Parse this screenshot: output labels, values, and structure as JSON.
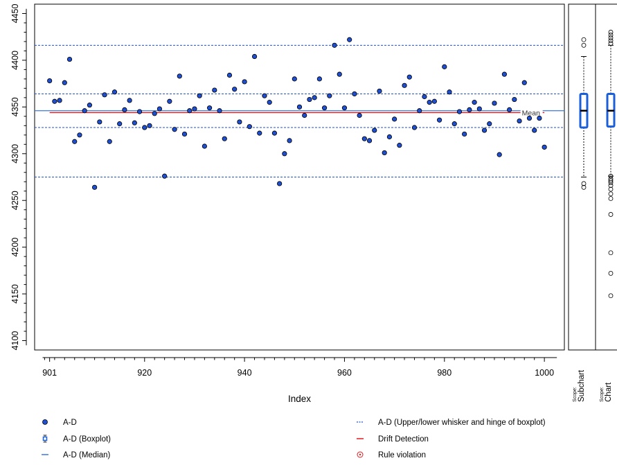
{
  "chart_data": {
    "type": "scatter",
    "x": [
      901,
      902,
      903,
      904,
      905,
      906,
      907,
      908,
      909,
      910,
      911,
      912,
      913,
      914,
      915,
      916,
      917,
      918,
      919,
      920,
      921,
      922,
      923,
      924,
      925,
      926,
      927,
      928,
      929,
      930,
      931,
      932,
      933,
      934,
      935,
      936,
      937,
      938,
      939,
      940,
      941,
      942,
      943,
      944,
      945,
      946,
      947,
      948,
      949,
      950,
      951,
      952,
      953,
      954,
      955,
      956,
      957,
      958,
      959,
      960,
      961,
      962,
      963,
      964,
      965,
      966,
      967,
      968,
      969,
      970,
      971,
      972,
      973,
      974,
      975,
      976,
      977,
      978,
      979,
      980,
      981,
      982,
      983,
      984,
      985,
      986,
      987,
      988,
      989,
      990,
      991,
      992,
      993,
      994,
      995,
      996,
      997,
      998,
      999,
      1000
    ],
    "y": [
      4378,
      4356,
      4357,
      4376,
      4401,
      4313,
      4320,
      4346,
      4352,
      4264,
      4334,
      4363,
      4313,
      4366,
      4332,
      4347,
      4357,
      4333,
      4345,
      4328,
      4330,
      4343,
      4348,
      4276,
      4356,
      4326,
      4383,
      4321,
      4346,
      4348,
      4362,
      4308,
      4349,
      4368,
      4346,
      4316,
      4384,
      4369,
      4334,
      4377,
      4329,
      4404,
      4322,
      4362,
      4355,
      4322,
      4268,
      4300,
      4314,
      4380,
      4350,
      4341,
      4358,
      4360,
      4380,
      4349,
      4362,
      4416,
      4385,
      4349,
      4422,
      4364,
      4341,
      4316,
      4314,
      4325,
      4367,
      4301,
      4318,
      4337,
      4309,
      4373,
      4382,
      4328,
      4346,
      4361,
      4355,
      4356,
      4336,
      4393,
      4366,
      4332,
      4345,
      4321,
      4347,
      4355,
      4348,
      4325,
      4332,
      4354,
      4299,
      4385,
      4347,
      4358,
      4335,
      4376,
      4338,
      4325,
      4338,
      4307
    ],
    "series_name": "A-D",
    "reference_lines": {
      "whiskers_hinges": [
        4416,
        4364,
        4328,
        4275
      ],
      "median": 4346,
      "drift_detection_mean": 4344
    },
    "mean_label": "Mean",
    "xlabel": "Index",
    "ylabel": "",
    "xlim": [
      898,
      1004
    ],
    "ylim": [
      4090,
      4460
    ],
    "x_ticks": [
      901,
      920,
      940,
      960,
      980,
      1000
    ],
    "x_tick_labels": [
      "901",
      "920",
      "940",
      "960",
      "980",
      "1000"
    ],
    "y_ticks": [
      4100,
      4150,
      4200,
      4250,
      4300,
      4350,
      4400,
      4450
    ],
    "y_tick_labels": [
      "4100",
      "4150",
      "4200",
      "4250",
      "4300",
      "4350",
      "4400",
      "4450"
    ],
    "y_minor_step": 10,
    "boxplots": [
      {
        "scope_prefix": "Scope:",
        "scope_label": "Subchart",
        "lower_hinge": 4328,
        "median": 4346,
        "upper_hinge": 4364,
        "whisker_low": 4275,
        "whisker_high": 4404,
        "outliers": [
          4422,
          4416,
          4268,
          4264
        ]
      },
      {
        "scope_prefix": "Scope:",
        "scope_label": "Chart",
        "lower_hinge": 4329,
        "median": 4346,
        "upper_hinge": 4364,
        "whisker_low": 4276,
        "whisker_high": 4416,
        "outliers": [
          4430,
          4427,
          4424,
          4421,
          4418,
          4276,
          4273,
          4271,
          4269,
          4266,
          4262,
          4257,
          4252,
          4235,
          4194,
          4172,
          4148
        ]
      }
    ],
    "legend": [
      {
        "label": "A-D",
        "symbol": "point"
      },
      {
        "label": "A-D (Boxplot)",
        "symbol": "boxplot"
      },
      {
        "label": "A-D (Median)",
        "symbol": "line-blue"
      },
      {
        "label": "A-D (Upper/lower whisker and hinge of boxplot)",
        "symbol": "line-dotted"
      },
      {
        "label": "Drift Detection",
        "symbol": "line-red"
      },
      {
        "label": "Rule violation",
        "symbol": "circle-red"
      }
    ],
    "colors": {
      "point_fill": "#1f4fcf",
      "point_stroke": "#000000",
      "median_line": "#3a78d8",
      "dotted_line": "#1f4fcf",
      "drift_line": "#e41a1c",
      "box_stroke": "#1a5fd8"
    }
  }
}
